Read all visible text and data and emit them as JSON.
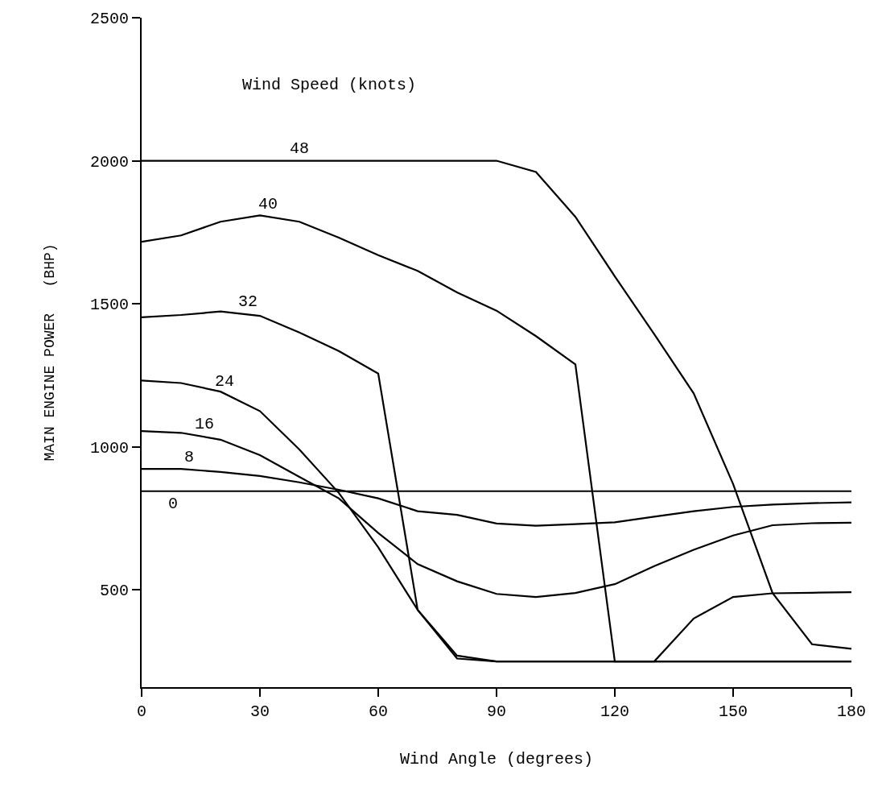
{
  "chart_data": {
    "type": "line",
    "xlabel": "Wind Angle (degrees)",
    "ylabel": "MAIN ENGINE POWER   (BHP)",
    "legend_title": "Wind Speed (knots)",
    "xlim": [
      0,
      180
    ],
    "xticks": [
      0,
      30,
      60,
      90,
      120,
      150,
      180
    ],
    "ylim": [
      160,
      2500
    ],
    "yticks": [
      500,
      1000,
      1500,
      2000,
      2500
    ],
    "marker": "none",
    "line_style": "solid",
    "series": [
      {
        "name": "0",
        "color": "#000000",
        "x": [
          0,
          30,
          60,
          90,
          120,
          150,
          180
        ],
        "values": [
          845,
          845,
          845,
          845,
          845,
          845,
          845
        ]
      },
      {
        "name": "8",
        "color": "#000000",
        "x": [
          0,
          10,
          20,
          30,
          40,
          50,
          60,
          70,
          80,
          90,
          100,
          110,
          120,
          130,
          140,
          150,
          160,
          170,
          180
        ],
        "values": [
          923,
          923,
          912,
          898,
          876,
          850,
          820,
          775,
          762,
          732,
          724,
          730,
          736,
          756,
          775,
          790,
          798,
          803,
          806
        ]
      },
      {
        "name": "16",
        "color": "#000000",
        "x": [
          0,
          10,
          20,
          30,
          40,
          50,
          60,
          70,
          80,
          90,
          100,
          110,
          120,
          130,
          140,
          150,
          160,
          170,
          180
        ],
        "values": [
          1055,
          1049,
          1025,
          971,
          895,
          820,
          699,
          590,
          530,
          486,
          475,
          489,
          520,
          583,
          640,
          690,
          726,
          733,
          735
        ]
      },
      {
        "name": "24",
        "color": "#000000",
        "x": [
          0,
          10,
          20,
          30,
          40,
          50,
          60,
          70,
          80,
          90,
          180
        ],
        "values": [
          1232,
          1223,
          1193,
          1125,
          991,
          839,
          649,
          430,
          270,
          250,
          250
        ]
      },
      {
        "name": "32",
        "color": "#000000",
        "x": [
          0,
          10,
          20,
          30,
          40,
          50,
          60,
          70,
          80,
          90,
          180
        ],
        "values": [
          1453,
          1461,
          1473,
          1458,
          1400,
          1335,
          1256,
          430,
          260,
          250,
          250
        ]
      },
      {
        "name": "40",
        "color": "#000000",
        "x": [
          0,
          10,
          20,
          30,
          40,
          50,
          60,
          70,
          80,
          90,
          100,
          110,
          120,
          130,
          140,
          150,
          160,
          170,
          180
        ],
        "values": [
          1717,
          1739,
          1787,
          1809,
          1787,
          1731,
          1670,
          1615,
          1540,
          1476,
          1387,
          1288,
          250,
          250,
          400,
          475,
          488,
          490,
          492
        ]
      },
      {
        "name": "48",
        "color": "#000000",
        "x": [
          0,
          30,
          60,
          90,
          100,
          110,
          120,
          130,
          140,
          150,
          160,
          170,
          180
        ],
        "values": [
          2000,
          2000,
          2000,
          2000,
          1961,
          1804,
          1596,
          1394,
          1187,
          870,
          489,
          310,
          294
        ]
      }
    ]
  }
}
